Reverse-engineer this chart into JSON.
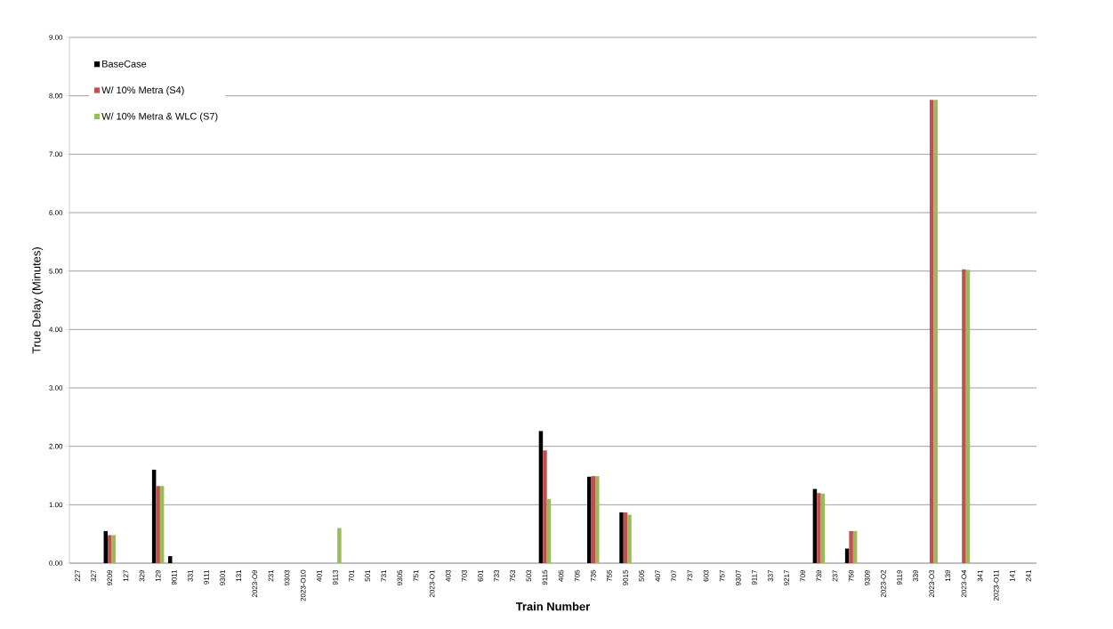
{
  "chart_data": {
    "type": "bar",
    "xlabel": "Train Number",
    "ylabel": "True Delay (Minutes)",
    "categories": [
      "227",
      "327",
      "9209",
      "127",
      "329",
      "129",
      "9011",
      "331",
      "9111",
      "9301",
      "131",
      "2023-O9",
      "231",
      "9303",
      "2023-O10",
      "401",
      "9113",
      "701",
      "501",
      "731",
      "9305",
      "751",
      "2023-O1",
      "403",
      "703",
      "601",
      "733",
      "753",
      "503",
      "9115",
      "405",
      "705",
      "735",
      "755",
      "9015",
      "505",
      "407",
      "707",
      "737",
      "603",
      "757",
      "9307",
      "9117",
      "337",
      "9217",
      "709",
      "739",
      "237",
      "759",
      "9309",
      "2023-O2",
      "9119",
      "339",
      "2023-O3",
      "139",
      "2023-O4",
      "341",
      "2023-O11",
      "141",
      "241"
    ],
    "series": [
      {
        "name": "BaseCase",
        "color": "#000000",
        "values": [
          0,
          0,
          0.55,
          0,
          0,
          1.6,
          0.12,
          0,
          0,
          0,
          0,
          0,
          0,
          0,
          0,
          0,
          0,
          0,
          0,
          0,
          0,
          0,
          0,
          0,
          0,
          0,
          0,
          0,
          0,
          2.26,
          0,
          0,
          1.48,
          0,
          0.87,
          0,
          0,
          0,
          0,
          0,
          0,
          0,
          0,
          0,
          0,
          0,
          1.27,
          0,
          0.25,
          0,
          0,
          0,
          0,
          0,
          0,
          0,
          0,
          0,
          0,
          0
        ]
      },
      {
        "name": "W/ 10% Metra (S4)",
        "color": "#c0504d",
        "values": [
          0,
          0,
          0.48,
          0,
          0,
          1.32,
          0,
          0,
          0,
          0,
          0,
          0,
          0,
          0,
          0,
          0,
          0,
          0,
          0,
          0,
          0,
          0,
          0,
          0,
          0,
          0,
          0,
          0,
          0,
          1.93,
          0,
          0,
          1.49,
          0,
          0.87,
          0,
          0,
          0,
          0,
          0,
          0,
          0,
          0,
          0,
          0,
          0,
          1.2,
          0,
          0.55,
          0,
          0,
          0,
          0,
          7.93,
          0,
          5.03,
          0,
          0,
          0,
          0
        ]
      },
      {
        "name": "W/ 10% Metra & WLC (S7)",
        "color": "#9bbb59",
        "values": [
          0,
          0,
          0.48,
          0,
          0,
          1.32,
          0,
          0,
          0,
          0,
          0,
          0,
          0,
          0,
          0,
          0,
          0.6,
          0,
          0,
          0,
          0,
          0,
          0,
          0,
          0,
          0,
          0,
          0,
          0,
          1.1,
          0,
          0,
          1.49,
          0,
          0.83,
          0,
          0,
          0,
          0,
          0,
          0,
          0,
          0,
          0,
          0,
          0,
          1.19,
          0,
          0.55,
          0,
          0,
          0,
          0,
          7.93,
          0,
          5.02,
          0,
          0,
          0,
          0
        ]
      }
    ],
    "ylim": [
      0,
      9
    ],
    "yticks": [
      {
        "value": 0,
        "label": "0.00"
      },
      {
        "value": 1,
        "label": "1.00"
      },
      {
        "value": 2,
        "label": "2.00"
      },
      {
        "value": 3,
        "label": "3.00"
      },
      {
        "value": 4,
        "label": "4.00"
      },
      {
        "value": 5,
        "label": "5.00"
      },
      {
        "value": 6,
        "label": "6.00"
      },
      {
        "value": 7,
        "label": "7.00"
      },
      {
        "value": 8,
        "label": "8.00"
      },
      {
        "value": 9,
        "label": "9.00"
      }
    ],
    "grid": "y",
    "legend": "top left"
  }
}
